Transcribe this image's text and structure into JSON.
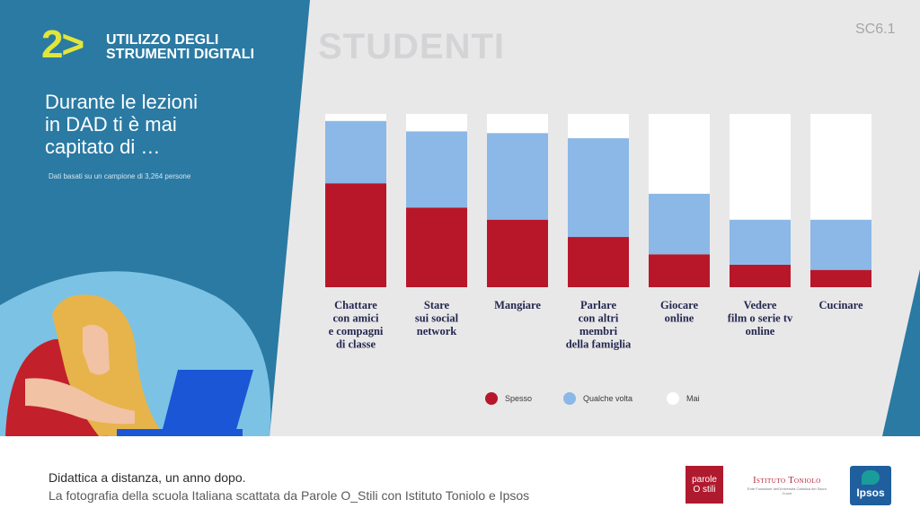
{
  "header": {
    "section_number": "2>",
    "section_title_line1": "UTILIZZO DEGLI",
    "section_title_line2": "STRUMENTI DIGITALI",
    "audience": "STUDENTI",
    "code": "SC6.1"
  },
  "question": {
    "line1": "Durante le lezioni",
    "line2": "in DAD ti è mai",
    "line3": "capitato di …",
    "sample_note": "Dati basati su un campione di 3,264 persone"
  },
  "legend": [
    {
      "label": "Spesso",
      "color": "#b8172a"
    },
    {
      "label": "Qualche volta",
      "color": "#8bb8e6"
    },
    {
      "label": "Mai",
      "color": "#ffffff"
    }
  ],
  "chart_data": {
    "type": "bar",
    "stacked": true,
    "percent": true,
    "categories": [
      [
        "Chattare",
        "con amici",
        "e compagni",
        "di classe"
      ],
      [
        "Stare",
        "sui social",
        "network"
      ],
      [
        "Mangiare"
      ],
      [
        "Parlare",
        "con altri",
        "membri",
        "della famiglia"
      ],
      [
        "Giocare",
        "online"
      ],
      [
        "Vedere",
        "film o serie tv",
        "online"
      ],
      [
        "Cucinare"
      ]
    ],
    "series": [
      {
        "name": "Spesso",
        "color": "#b8172a",
        "values": [
          60,
          46,
          39,
          29,
          19,
          13,
          10
        ]
      },
      {
        "name": "Qualche volta",
        "color": "#8bb8e6",
        "values": [
          36,
          44,
          50,
          57,
          35,
          26,
          29
        ]
      },
      {
        "name": "Mai",
        "color": "#ffffff",
        "values": [
          4,
          10,
          11,
          14,
          46,
          61,
          61
        ]
      }
    ],
    "ylim": [
      0,
      100
    ],
    "legend_position": "bottom"
  },
  "footer": {
    "title": "Didattica a distanza, un anno dopo.",
    "subtitle": "La fotografia della scuola Italiana scattata da Parole O_Stili con Istituto Toniolo e Ipsos"
  },
  "logos": {
    "parole_line1": "parole",
    "parole_line2": "O stili",
    "toniolo_name": "Istituto Toniolo",
    "toniolo_sub": "Ente Fondatore dell'Università Cattolica del Sacro Cuore",
    "ipsos": "Ipsos"
  }
}
